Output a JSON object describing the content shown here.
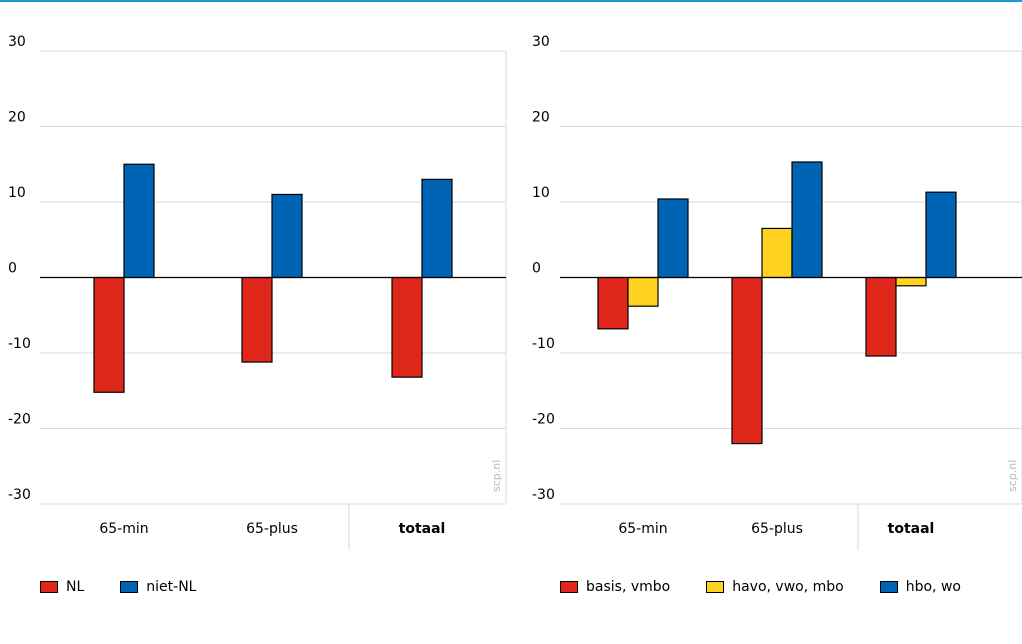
{
  "colors": {
    "accent_rule": "#1a9ad6",
    "red": "#e0271c",
    "blue": "#0064b4",
    "yellow": "#ffd31f",
    "grid": "#d9d9d9"
  },
  "watermark": "scp.nl",
  "chart_data": [
    {
      "type": "bar",
      "categories": [
        "65-min",
        "65-plus",
        "totaal"
      ],
      "bold_categories": [
        "totaal"
      ],
      "ylim": [
        -30,
        30
      ],
      "yticks": [
        30,
        20,
        10,
        0,
        -10,
        -20,
        -30
      ],
      "grid": true,
      "legend_position": "bottom-left",
      "series": [
        {
          "name": "NL",
          "color": "#e0271c",
          "values": [
            -15.2,
            -11.2,
            -13.2
          ]
        },
        {
          "name": "niet-NL",
          "color": "#0064b4",
          "values": [
            15.0,
            11.0,
            13.0
          ]
        }
      ]
    },
    {
      "type": "bar",
      "categories": [
        "65-min",
        "65-plus",
        "totaal"
      ],
      "bold_categories": [
        "totaal"
      ],
      "ylim": [
        -30,
        30
      ],
      "yticks": [
        30,
        20,
        10,
        0,
        -10,
        -20,
        -30
      ],
      "grid": true,
      "legend_position": "bottom-right",
      "series": [
        {
          "name": "basis, vmbo",
          "color": "#e0271c",
          "values": [
            -6.8,
            -22.0,
            -10.4
          ]
        },
        {
          "name": "havo, vwo, mbo",
          "color": "#ffd31f",
          "values": [
            -3.8,
            6.5,
            -1.1
          ]
        },
        {
          "name": "hbo, wo",
          "color": "#0064b4",
          "values": [
            10.4,
            15.3,
            11.3
          ]
        }
      ]
    }
  ]
}
